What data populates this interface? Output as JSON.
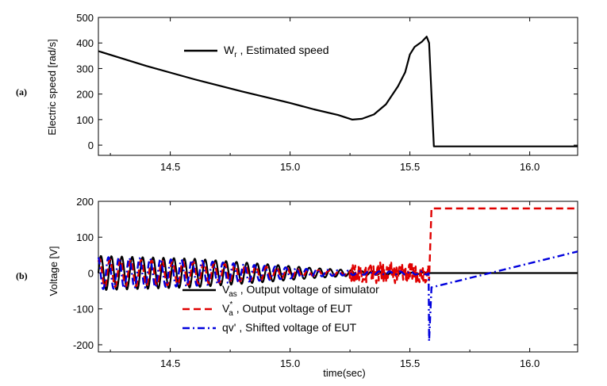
{
  "chart_data": [
    {
      "panel_label": "(a)",
      "type": "line",
      "ylabel": "Electric speed [rad/s]",
      "xlabel": "",
      "xlim": [
        14.2,
        16.2
      ],
      "ylim": [
        -40,
        500
      ],
      "x_ticks": [
        "14.5",
        "15.0",
        "15.5",
        "16.0"
      ],
      "x_tick_values": [
        14.5,
        15.0,
        15.5,
        16.0
      ],
      "y_ticks": [
        "0",
        "100",
        "200",
        "300",
        "400",
        "500"
      ],
      "y_tick_values": [
        0,
        100,
        200,
        300,
        400,
        500
      ],
      "series": [
        {
          "legend_base": "W",
          "legend_sub": "r",
          "legend_rest": " , Estimated speed",
          "color": "#000000",
          "style": "solid",
          "x": [
            14.2,
            14.4,
            14.6,
            14.8,
            15.0,
            15.1,
            15.2,
            15.26,
            15.3,
            15.35,
            15.4,
            15.45,
            15.48,
            15.5,
            15.52,
            15.55,
            15.57,
            15.58,
            15.6,
            15.8,
            16.0,
            16.2
          ],
          "y": [
            368,
            310,
            258,
            210,
            165,
            140,
            118,
            100,
            103,
            120,
            160,
            230,
            285,
            355,
            385,
            405,
            425,
            400,
            -5,
            -5,
            -5,
            -5
          ]
        }
      ]
    },
    {
      "panel_label": "(b)",
      "type": "line",
      "ylabel": "Voltage [V]",
      "xlabel": "time(sec)",
      "xlim": [
        14.2,
        16.2
      ],
      "ylim": [
        -220,
        200
      ],
      "x_ticks": [
        "14.5",
        "15.0",
        "15.5",
        "16.0"
      ],
      "x_tick_values": [
        14.5,
        15.0,
        15.5,
        16.0
      ],
      "y_ticks": [
        "-200",
        "-100",
        "0",
        "100",
        "200"
      ],
      "y_tick_values": [
        -200,
        -100,
        0,
        100,
        200
      ],
      "series": [
        {
          "legend_base": "V",
          "legend_sup": "*",
          "legend_sub": "as",
          "legend_rest": " , Output voltage of simulator",
          "color": "#000000",
          "style": "solid",
          "envelope": [
            [
              14.2,
              48
            ],
            [
              14.6,
              40
            ],
            [
              14.9,
              25
            ],
            [
              15.1,
              14
            ],
            [
              15.3,
              6
            ],
            [
              15.58,
              2
            ]
          ],
          "frequency_hz": 23,
          "after_step": [
            [
              15.58,
              0
            ],
            [
              16.2,
              0
            ]
          ]
        },
        {
          "legend_base": "V",
          "legend_sup": "*",
          "legend_sub": "a",
          "legend_rest": " , Output voltage of EUT",
          "color": "#e00000",
          "style": "dashed",
          "envelope": [
            [
              14.2,
              40
            ],
            [
              14.6,
              32
            ],
            [
              14.9,
              18
            ],
            [
              15.1,
              8
            ],
            [
              15.3,
              4
            ],
            [
              15.58,
              3
            ]
          ],
          "noise_region": [
            15.25,
            15.58,
            26
          ],
          "frequency_hz": 23,
          "phase_shift": 0.9,
          "after_step": [
            [
              15.58,
              -20
            ],
            [
              15.59,
              180
            ],
            [
              16.2,
              180
            ]
          ]
        },
        {
          "legend_base": "qv'",
          "legend_rest": " , Shifted voltage of EUT",
          "color": "#0000dd",
          "style": "dashdot",
          "envelope": [
            [
              14.2,
              45
            ],
            [
              14.6,
              36
            ],
            [
              14.9,
              20
            ],
            [
              15.1,
              10
            ],
            [
              15.3,
              5
            ],
            [
              15.58,
              4
            ]
          ],
          "frequency_hz": 23,
          "phase_shift": 1.8,
          "after_step": [
            [
              15.58,
              -190
            ],
            [
              15.59,
              -40
            ],
            [
              16.2,
              60
            ]
          ]
        }
      ]
    }
  ]
}
